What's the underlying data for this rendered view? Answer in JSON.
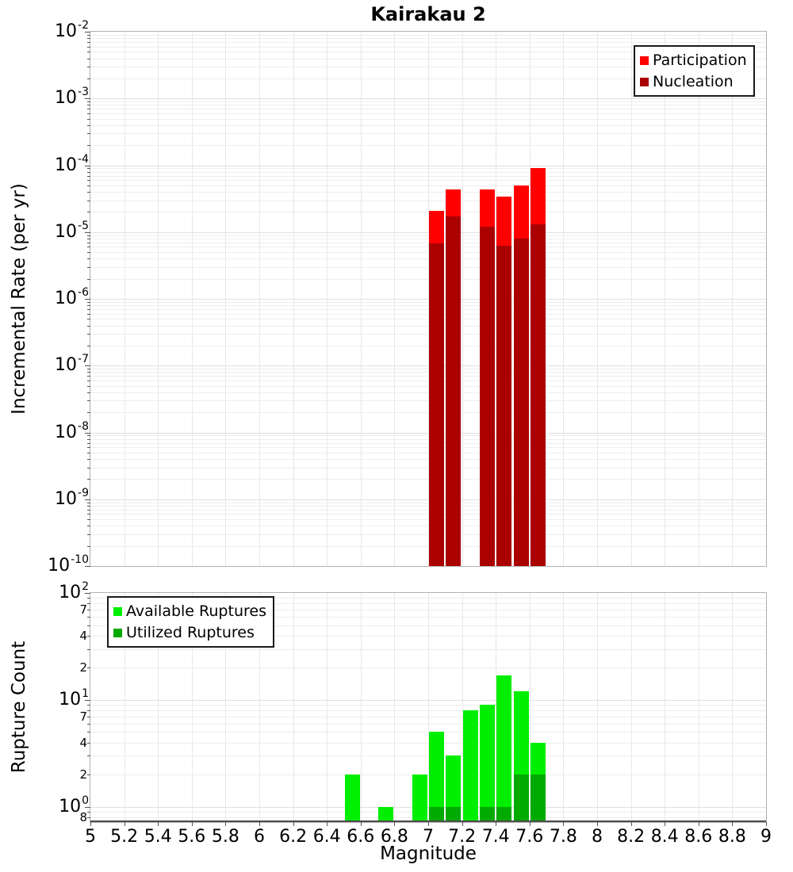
{
  "title": "Kairakau 2",
  "colors": {
    "participation": "#fe0000",
    "nucleation": "#aa0000",
    "available": "#00ee00",
    "utilized": "#00aa00",
    "grid": "#e7e7e7",
    "plot_border": "#b0b0b0",
    "axis_line": "#4d4d4d",
    "background": "#ffffff",
    "text": "#000000"
  },
  "chart_data": [
    {
      "type": "bar",
      "title": "Kairakau 2",
      "xlabel": "",
      "ylabel": "Incremental Rate (per yr)",
      "xscale": "linear",
      "yscale": "log",
      "xlim": [
        5,
        9
      ],
      "ylim": [
        1e-10,
        0.01
      ],
      "grid": true,
      "bin_width": 0.1,
      "x_tick_step": 0.2,
      "x_tick_labels": [
        "5",
        "5.2",
        "5.4",
        "5.6",
        "5.8",
        "6",
        "6.2",
        "6.4",
        "6.6",
        "6.8",
        "7",
        "7.2",
        "7.4",
        "7.6",
        "7.8",
        "8",
        "8.2",
        "8.4",
        "8.6",
        "8.8",
        "9"
      ],
      "y_tick_exponents": [
        -2,
        -3,
        -4,
        -5,
        -6,
        -7,
        -8,
        -9,
        -10
      ],
      "y_minor_tick_labels": [],
      "legend": {
        "position": "top-right",
        "entries": [
          {
            "label": "Participation",
            "color": "#fe0000"
          },
          {
            "label": "Nucleation",
            "color": "#aa0000"
          }
        ]
      },
      "series": [
        {
          "name": "Participation",
          "color": "#fe0000",
          "x": [
            7.05,
            7.15,
            7.35,
            7.45,
            7.55,
            7.65
          ],
          "values": [
            2.1e-05,
            4.3e-05,
            4.4e-05,
            3.4e-05,
            5e-05,
            9.2e-05
          ]
        },
        {
          "name": "Nucleation",
          "color": "#aa0000",
          "x": [
            7.05,
            7.15,
            7.35,
            7.45,
            7.55,
            7.65
          ],
          "values": [
            6.8e-06,
            1.7e-05,
            1.2e-05,
            6.2e-06,
            7.9e-06,
            1.3e-05
          ]
        }
      ]
    },
    {
      "type": "bar",
      "title": "",
      "xlabel": "Magnitude",
      "ylabel": "Rupture Count",
      "xscale": "linear",
      "yscale": "log",
      "xlim": [
        5,
        9
      ],
      "ylim": [
        0.72,
        100
      ],
      "grid": true,
      "bin_width": 0.1,
      "x_tick_step": 0.2,
      "x_tick_labels": [
        "5",
        "5.2",
        "5.4",
        "5.6",
        "5.8",
        "6",
        "6.2",
        "6.4",
        "6.6",
        "6.8",
        "7",
        "7.2",
        "7.4",
        "7.6",
        "7.8",
        "8",
        "8.2",
        "8.4",
        "8.6",
        "8.8",
        "9"
      ],
      "y_tick_exponents": [
        2,
        1,
        0
      ],
      "y_minor_tick_labels": [
        {
          "value": 70,
          "label": "7"
        },
        {
          "value": 40,
          "label": "4"
        },
        {
          "value": 20,
          "label": "2"
        },
        {
          "value": 7,
          "label": "7"
        },
        {
          "value": 4,
          "label": "4"
        },
        {
          "value": 2,
          "label": "2"
        },
        {
          "value": 0.8,
          "label": "8"
        }
      ],
      "legend": {
        "position": "top-left",
        "entries": [
          {
            "label": "Available Ruptures",
            "color": "#00ee00"
          },
          {
            "label": "Utilized Ruptures",
            "color": "#00aa00"
          }
        ]
      },
      "series": [
        {
          "name": "Available Ruptures",
          "color": "#00ee00",
          "x": [
            6.55,
            6.75,
            6.95,
            7.05,
            7.15,
            7.25,
            7.35,
            7.45,
            7.55,
            7.65
          ],
          "values": [
            2,
            1,
            2,
            5,
            3,
            8,
            9,
            17,
            12,
            4
          ]
        },
        {
          "name": "Utilized Ruptures",
          "color": "#00aa00",
          "x": [
            7.05,
            7.15,
            7.35,
            7.45,
            7.55,
            7.65
          ],
          "values": [
            1,
            1,
            1,
            1,
            2,
            2
          ]
        }
      ]
    }
  ]
}
